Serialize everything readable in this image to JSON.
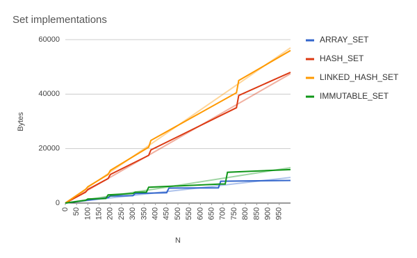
{
  "chart_data": {
    "type": "line",
    "title": "Set implementations",
    "x_label": "N",
    "y_label": "Bytes",
    "xlim": [
      0,
      1000
    ],
    "xticks": [
      0,
      50,
      100,
      150,
      200,
      250,
      300,
      350,
      400,
      450,
      500,
      550,
      600,
      650,
      700,
      750,
      800,
      850,
      900,
      950
    ],
    "ylim": [
      0,
      60000
    ],
    "yticks": [
      0,
      20000,
      40000,
      60000
    ],
    "grid": true,
    "legend": "right",
    "series": [
      {
        "name": "ARRAY_SET",
        "color": "#3366cc",
        "x": [
          0,
          190,
          200,
          300,
          310,
          450,
          460,
          680,
          690,
          1000
        ],
        "values": [
          0,
          2000,
          2600,
          2700,
          3500,
          3800,
          5500,
          5600,
          8000,
          8300
        ],
        "trendline": {
          "x": [
            0,
            1000
          ],
          "values": [
            0,
            9400
          ]
        }
      },
      {
        "name": "HASH_SET",
        "color": "#dc3912",
        "x": [
          0,
          90,
          100,
          190,
          200,
          370,
          380,
          760,
          770,
          1000
        ],
        "values": [
          0,
          4000,
          5000,
          9000,
          10500,
          17500,
          19500,
          35000,
          39500,
          48000
        ],
        "trendline": {
          "x": [
            0,
            1000
          ],
          "values": [
            0,
            47500
          ]
        }
      },
      {
        "name": "LINKED_HASH_SET",
        "color": "#ff9900",
        "x": [
          0,
          90,
          100,
          190,
          200,
          370,
          380,
          760,
          770,
          1000
        ],
        "values": [
          0,
          5000,
          6000,
          10500,
          12000,
          20500,
          23000,
          40500,
          45000,
          56000
        ],
        "trendline": {
          "x": [
            0,
            1000
          ],
          "values": [
            0,
            57000
          ]
        }
      },
      {
        "name": "IMMUTABLE_SET",
        "color": "#109618",
        "x": [
          0,
          90,
          100,
          180,
          190,
          300,
          310,
          360,
          370,
          690,
          710,
          720,
          1000
        ],
        "values": [
          0,
          1000,
          1500,
          1700,
          3000,
          3500,
          4000,
          4000,
          5800,
          7000,
          7000,
          11300,
          12300
        ],
        "trendline": {
          "x": [
            0,
            1000
          ],
          "values": [
            0,
            13000
          ]
        }
      }
    ]
  }
}
